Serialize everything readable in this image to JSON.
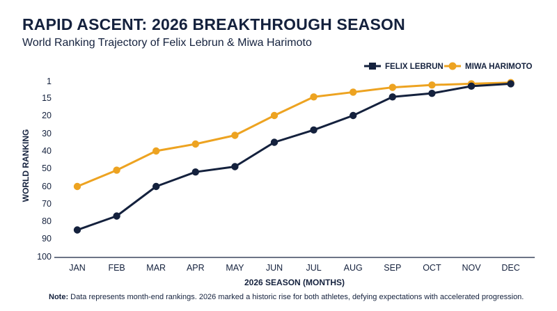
{
  "header": {
    "title": "RAPID ASCENT: 2026 BREAKTHROUGH SEASON",
    "subtitle": "World Ranking Trajectory of Felix Lebrun & Miwa Harimoto"
  },
  "note": {
    "prefix": "Note:",
    "text": "Data represents month-end rankings. 2026 marked a historic rise for both athletes, defying expectations with accelerated progression."
  },
  "colors": {
    "lebrun": "#14213d",
    "harimoto": "#eda321",
    "axis": "#14213d"
  },
  "chart_data": {
    "type": "line",
    "title": "RAPID ASCENT: 2026 BREAKTHROUGH SEASON",
    "subtitle": "World Ranking Trajectory of Felix Lebrun & Miwa Harimoto",
    "xlabel": "2026 SEASON (MONTHS)",
    "ylabel": "WORLD RANKING",
    "categories": [
      "JAN",
      "FEB",
      "MAR",
      "APR",
      "MAY",
      "JUN",
      "JUL",
      "AUG",
      "SEP",
      "OCT",
      "NOV",
      "DEC"
    ],
    "y_ticks": [
      1,
      15,
      20,
      30,
      40,
      50,
      60,
      70,
      80,
      90,
      100
    ],
    "y_scale": "inverted, uneven spacing between 1 and 15",
    "ylim": [
      100,
      1
    ],
    "legend_position": "top-right",
    "grid": false,
    "series": [
      {
        "name": "FELIX LEBRUN",
        "color": "#14213d",
        "marker": "square",
        "values": [
          85,
          77,
          60,
          52,
          49,
          35,
          28,
          20,
          14,
          11,
          5,
          3
        ]
      },
      {
        "name": "MIWA HARIMOTO",
        "color": "#eda321",
        "marker": "circle",
        "values": [
          60,
          51,
          40,
          36,
          31,
          20,
          14,
          10,
          6,
          4,
          3,
          2
        ]
      }
    ]
  }
}
